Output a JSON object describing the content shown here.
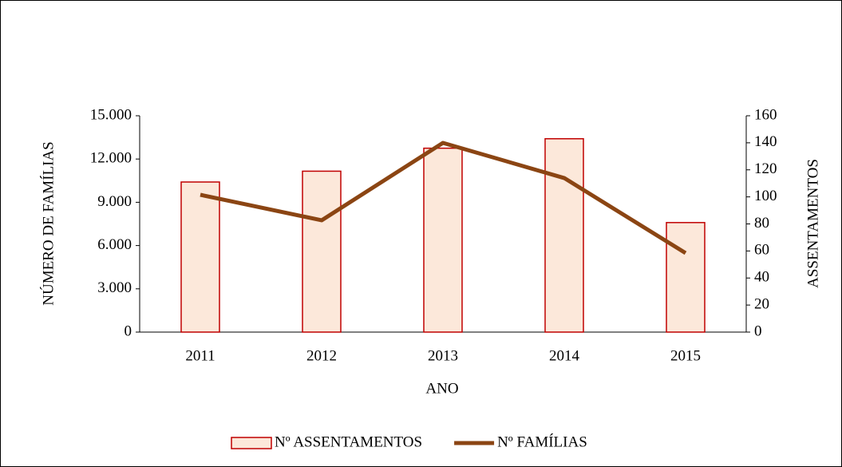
{
  "chart_data": {
    "type": "bar_line",
    "categories": [
      "2011",
      "2012",
      "2013",
      "2014",
      "2015"
    ],
    "xlabel": "ANO",
    "ylabel": "NÚMERO DE FAMÍLIAS",
    "y2label": "ASSENTAMENTOS",
    "ylim": [
      0,
      15000
    ],
    "yticks": [
      0,
      {
        "value": 3000,
        "label": "3.000"
      },
      {
        "value": 6000,
        "label": "6.000"
      },
      {
        "value": 9000,
        "label": "9.000"
      },
      {
        "value": 12000,
        "label": "12.000"
      },
      {
        "value": 15000,
        "label": "15.000"
      }
    ],
    "y2lim": [
      0,
      160
    ],
    "y2ticks": [
      0,
      20,
      40,
      60,
      80,
      100,
      120,
      140,
      160
    ],
    "series": [
      {
        "name": "Nº ASSENTAMENTOS",
        "type": "bar",
        "axis": "y2",
        "color": "#fce8da",
        "edgecolor": "#c00000",
        "values": [
          111,
          119,
          136,
          143,
          81
        ]
      },
      {
        "name": "Nº FAMÍLIAS",
        "type": "line",
        "axis": "y",
        "color": "#8b4513",
        "values": [
          9520,
          7750,
          13120,
          10680,
          5480
        ]
      }
    ],
    "legend": "bottom"
  }
}
